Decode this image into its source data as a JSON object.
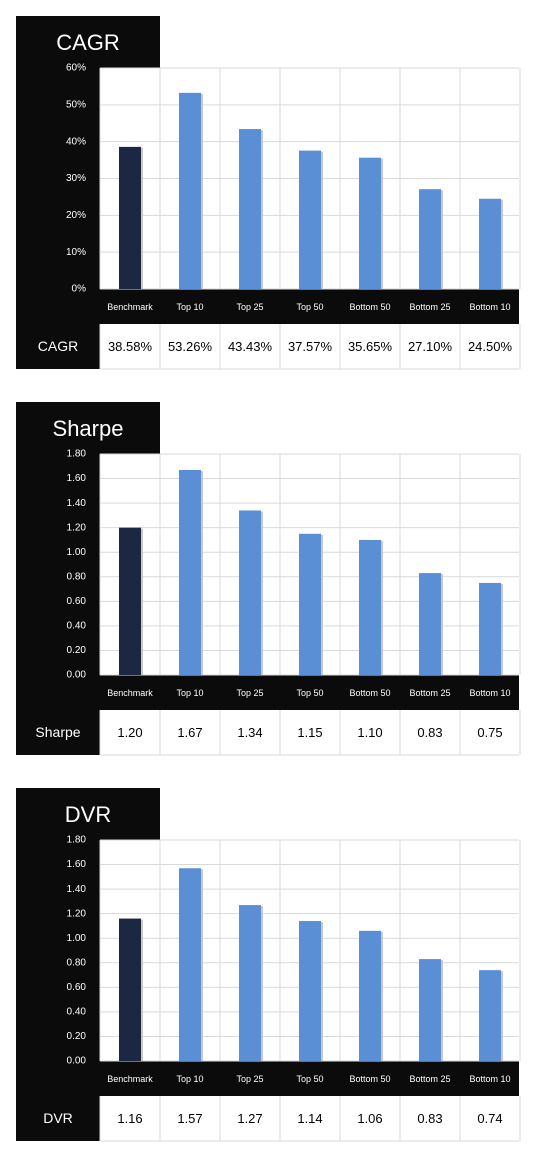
{
  "colors": {
    "frame": "#0b0b0b",
    "benchmark_bar": "#1c2741",
    "bar": "#5a8fd6",
    "grid": "#d9d9d9",
    "text_light": "#ffffff",
    "text_dark": "#000000"
  },
  "chart_data": [
    {
      "type": "bar",
      "title": "CAGR",
      "categories": [
        "Benchmark",
        "Top 10",
        "Top 25",
        "Top 50",
        "Bottom 50",
        "Bottom 25",
        "Bottom 10"
      ],
      "values": [
        38.58,
        53.26,
        43.43,
        37.57,
        35.65,
        27.1,
        24.5
      ],
      "ylim": [
        0,
        60
      ],
      "yticks": [
        "0%",
        "10%",
        "20%",
        "30%",
        "40%",
        "50%",
        "60%"
      ],
      "table_row_label": "CAGR",
      "table_values": [
        "38.58%",
        "53.26%",
        "43.43%",
        "37.57%",
        "35.65%",
        "27.10%",
        "24.50%"
      ],
      "grid": true
    },
    {
      "type": "bar",
      "title": "Sharpe",
      "categories": [
        "Benchmark",
        "Top 10",
        "Top 25",
        "Top 50",
        "Bottom 50",
        "Bottom 25",
        "Bottom 10"
      ],
      "values": [
        1.2,
        1.67,
        1.34,
        1.15,
        1.1,
        0.83,
        0.75
      ],
      "ylim": [
        0,
        1.8
      ],
      "yticks": [
        "0.00",
        "0.20",
        "0.40",
        "0.60",
        "0.80",
        "1.00",
        "1.20",
        "1.40",
        "1.60",
        "1.80"
      ],
      "table_row_label": "Sharpe",
      "table_values": [
        "1.20",
        "1.67",
        "1.34",
        "1.15",
        "1.10",
        "0.83",
        "0.75"
      ],
      "grid": true
    },
    {
      "type": "bar",
      "title": "DVR",
      "categories": [
        "Benchmark",
        "Top 10",
        "Top 25",
        "Top 50",
        "Bottom 50",
        "Bottom 25",
        "Bottom 10"
      ],
      "values": [
        1.16,
        1.57,
        1.27,
        1.14,
        1.06,
        0.83,
        0.74
      ],
      "ylim": [
        0,
        1.8
      ],
      "yticks": [
        "0.00",
        "0.20",
        "0.40",
        "0.60",
        "0.80",
        "1.00",
        "1.20",
        "1.40",
        "1.60",
        "1.80"
      ],
      "table_row_label": "DVR",
      "table_values": [
        "1.16",
        "1.57",
        "1.27",
        "1.14",
        "1.06",
        "0.83",
        "0.74"
      ],
      "grid": true
    }
  ]
}
